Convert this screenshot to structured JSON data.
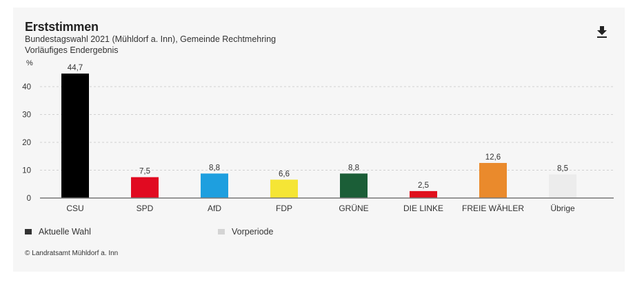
{
  "header": {
    "title": "Erststimmen",
    "subtitle": "Bundestagswahl 2021 (Mühldorf a. Inn), Gemeinde Rechtmehring",
    "status": "Vorläufiges Endergebnis",
    "download_icon": "download-icon"
  },
  "chart_data": {
    "type": "bar",
    "title": "Erststimmen",
    "subtitle": "Bundestagswahl 2021 (Mühldorf a. Inn), Gemeinde Rechtmehring",
    "xlabel": "",
    "ylabel": "%",
    "ylim": [
      0,
      45
    ],
    "yticks": [
      0,
      10,
      20,
      30,
      40
    ],
    "ytick_labels": [
      "0",
      "10",
      "20",
      "30",
      "40"
    ],
    "grid": true,
    "categories": [
      "CSU",
      "SPD",
      "AfD",
      "FDP",
      "GRÜNE",
      "DIE LINKE",
      "FREIE WÄHLER",
      "Übrige"
    ],
    "values": [
      44.7,
      7.5,
      8.8,
      6.6,
      8.8,
      2.5,
      12.6,
      8.5
    ],
    "value_labels": [
      "44,7",
      "7,5",
      "8,8",
      "6,6",
      "8,8",
      "2,5",
      "12,6",
      "8,5"
    ],
    "colors": [
      "#000000",
      "#e10a21",
      "#1e9fdf",
      "#f5e535",
      "#1b5e37",
      "#e0101c",
      "#ea8a2c",
      "#ececec"
    ],
    "legend": [
      {
        "label": "Aktuelle Wahl",
        "color": "#333333"
      },
      {
        "label": "Vorperiode",
        "color": "#d4d4d4"
      }
    ],
    "legend_position": "bottom-left"
  },
  "footer": {
    "credit": "© Landratsamt Mühldorf a. Inn"
  }
}
